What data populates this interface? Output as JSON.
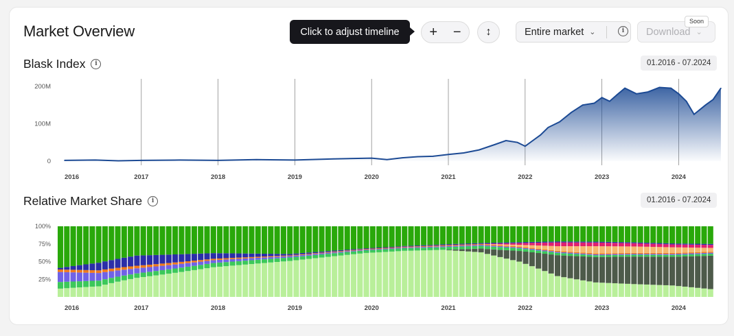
{
  "header": {
    "title": "Market Overview",
    "tooltip": "Click to adjust timeline",
    "zoom_in": "+",
    "zoom_out": "−",
    "vertical_icon": "↕",
    "market_select": "Entire market",
    "download_label": "Download",
    "soon_badge": "Soon"
  },
  "sections": {
    "index_title": "Blask Index",
    "index_range": "01.2016 - 07.2024",
    "share_title": "Relative Market Share",
    "share_range": "01.2016 - 07.2024"
  },
  "icons": [
    "info-icon",
    "chevron-down-icon",
    "vertical-arrows-icon"
  ],
  "colors": {
    "index_line": "#1c4a94",
    "index_fill_top": "#1c4a94",
    "accent_green": "#2aa40a",
    "light_green": "#b9ef9a"
  },
  "chart_data": [
    {
      "type": "area",
      "title": "Blask Index",
      "x_ticks": [
        "2016",
        "2017",
        "2018",
        "2019",
        "2020",
        "2021",
        "2022",
        "2023",
        "2024"
      ],
      "y_ticks": [
        "0",
        "100M",
        "200M"
      ],
      "ylim": [
        0,
        220
      ],
      "y_unit": "M",
      "grid": "vertical at year ticks",
      "series": [
        {
          "x": [
            2016.0,
            2016.4,
            2016.7,
            2017.0,
            2017.5,
            2018.0,
            2018.5,
            2019.0,
            2019.5,
            2020.0,
            2020.2,
            2020.4,
            2020.6,
            2020.8,
            2021.0,
            2021.2,
            2021.4,
            2021.6,
            2021.75,
            2021.9,
            2022.0,
            2022.1,
            2022.2,
            2022.3,
            2022.45,
            2022.6,
            2022.75,
            2022.9,
            2023.0,
            2023.1,
            2023.2,
            2023.3,
            2023.45,
            2023.6,
            2023.75,
            2023.9,
            2024.0,
            2024.1,
            2024.2,
            2024.35,
            2024.45,
            2024.55
          ],
          "values": [
            2,
            3,
            1,
            2,
            3,
            2,
            4,
            3,
            6,
            8,
            4,
            9,
            12,
            13,
            18,
            22,
            30,
            44,
            55,
            50,
            40,
            55,
            70,
            90,
            105,
            130,
            150,
            155,
            170,
            160,
            178,
            195,
            180,
            185,
            197,
            195,
            180,
            160,
            125,
            150,
            165,
            195
          ]
        }
      ]
    },
    {
      "type": "bar",
      "stacked": true,
      "title": "Relative Market Share",
      "x_ticks": [
        "2016",
        "2017",
        "2018",
        "2019",
        "2020",
        "2021",
        "2022",
        "2023",
        "2024"
      ],
      "y_ticks": [
        "25%",
        "50%",
        "75%",
        "100%"
      ],
      "ylim": [
        0,
        100
      ],
      "y_unit": "%",
      "x_range": [
        "2016-01",
        "2024-07"
      ],
      "categories_count": 103,
      "series": [
        {
          "name": "",
          "color": "#b9ef9a",
          "anchors_t": [
            0,
            0.5,
            1,
            2,
            3,
            4,
            4.5,
            5,
            5.5,
            6,
            6.5,
            7,
            8,
            8.5
          ],
          "values": [
            10,
            14,
            30,
            42,
            52,
            66,
            62,
            52,
            48,
            40,
            22,
            16,
            12,
            8
          ]
        },
        {
          "name": "",
          "color": "#4d5a4a",
          "anchors_t": [
            0,
            5,
            5.5,
            6,
            6.5,
            7,
            7.5,
            8,
            8.5
          ],
          "values": [
            0,
            0,
            4,
            12,
            22,
            28,
            30,
            30,
            34
          ]
        },
        {
          "name": "",
          "color": "#3cc85a",
          "anchors_t": [
            0,
            1,
            2,
            3,
            4,
            5,
            6,
            7,
            8.5
          ],
          "values": [
            8,
            7,
            6,
            5,
            4,
            3,
            3,
            2,
            2
          ]
        },
        {
          "name": "",
          "color": "#7062e6",
          "anchors_t": [
            0,
            1,
            2,
            3,
            4,
            5,
            6,
            8.5
          ],
          "values": [
            12,
            8,
            4,
            2,
            1,
            1,
            1,
            1
          ]
        },
        {
          "name": "",
          "color": "#f07a1a",
          "anchors_t": [
            0,
            1,
            2,
            3,
            4,
            5,
            6,
            8.5
          ],
          "values": [
            3,
            4,
            2,
            1,
            1,
            1,
            1,
            1
          ]
        },
        {
          "name": "",
          "color": "#f5b870",
          "anchors_t": [
            0,
            5.5,
            6,
            6.5,
            7,
            8,
            8.5
          ],
          "values": [
            0,
            0,
            2,
            5,
            8,
            6,
            4
          ]
        },
        {
          "name": "",
          "color": "#e0206e",
          "anchors_t": [
            0,
            5.5,
            6,
            6.5,
            7,
            8,
            8.5
          ],
          "values": [
            0,
            0,
            2,
            4,
            4,
            3,
            3
          ]
        },
        {
          "name": "",
          "color": "#2b2ea8",
          "anchors_t": [
            0,
            0.5,
            1,
            1.5,
            2,
            2.5,
            3,
            4,
            5,
            6,
            8.5
          ],
          "values": [
            2,
            10,
            16,
            12,
            8,
            5,
            2,
            1,
            1,
            1,
            1
          ]
        },
        {
          "name": "",
          "color": "#29a80a",
          "anchors_t": [
            0,
            1,
            2,
            3,
            4,
            5,
            5.5,
            6,
            6.5,
            7,
            8,
            8.5
          ],
          "values": [
            50,
            46,
            38,
            40,
            33,
            20,
            18,
            18,
            16,
            17,
            18,
            18
          ]
        },
        {
          "name": "",
          "color": "#c8e8ff",
          "anchors_t": [
            0,
            8.5
          ],
          "values": [
            0,
            0
          ]
        }
      ]
    }
  ]
}
